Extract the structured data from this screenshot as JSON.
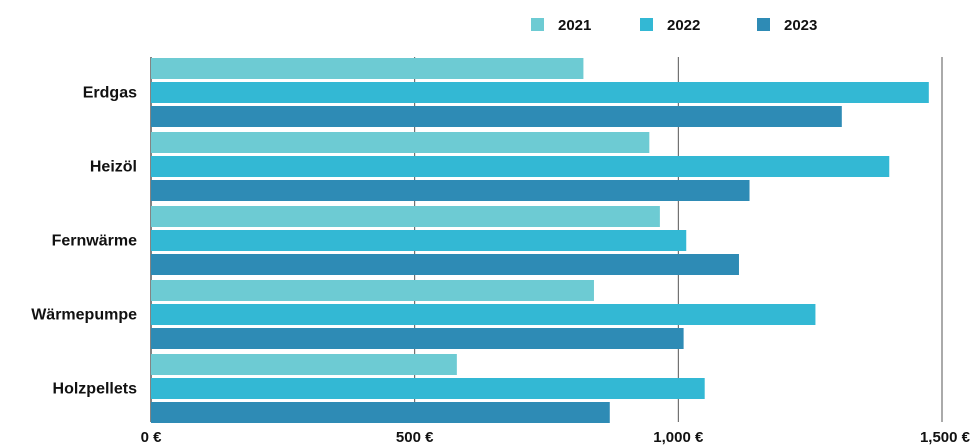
{
  "chart_data": {
    "type": "bar",
    "orientation": "horizontal",
    "categories": [
      "Erdgas",
      "Heizöl",
      "Fernwärme",
      "Wärmepumpe",
      "Holzpellets"
    ],
    "series": [
      {
        "name": "2021",
        "color": "#6DCBD3",
        "values": [
          820,
          945,
          965,
          840,
          580
        ]
      },
      {
        "name": "2022",
        "color": "#33B8D4",
        "values": [
          1475,
          1400,
          1015,
          1260,
          1050
        ]
      },
      {
        "name": "2023",
        "color": "#2E8BB5",
        "values": [
          1310,
          1135,
          1115,
          1010,
          870
        ]
      }
    ],
    "x_ticks": [
      0,
      500,
      1000,
      1500
    ],
    "x_tick_labels": [
      "0 €",
      "500 €",
      "1,000 €",
      "1,500 €"
    ],
    "xlim": [
      0,
      1500
    ],
    "grid": "vertical",
    "legend_position": "top-right"
  }
}
